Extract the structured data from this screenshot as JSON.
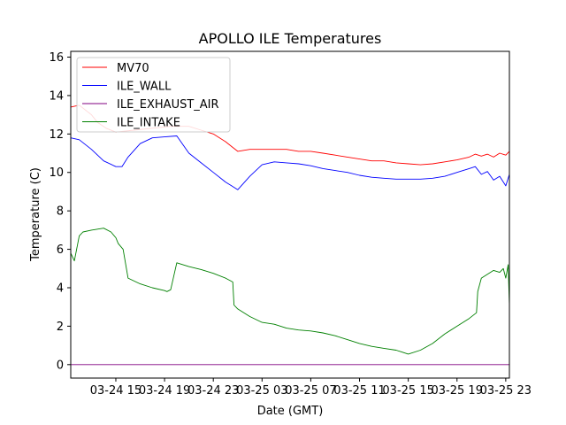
{
  "chart_data": {
    "type": "line",
    "title": "APOLLO ILE Temperatures",
    "xlabel": "Date (GMT)",
    "ylabel": "Temperature (C)",
    "x_unit": "hours since 03-24 00:00 GMT",
    "xlim": [
      11.3,
      47.3
    ],
    "ylim": [
      -0.7,
      16.3
    ],
    "x_ticks": [
      {
        "value": 15,
        "label": "03-24 15"
      },
      {
        "value": 19,
        "label": "03-24 19"
      },
      {
        "value": 23,
        "label": "03-24 23"
      },
      {
        "value": 27,
        "label": "03-25 03"
      },
      {
        "value": 31,
        "label": "03-25 07"
      },
      {
        "value": 35,
        "label": "03-25 11"
      },
      {
        "value": 39,
        "label": "03-25 15"
      },
      {
        "value": 43,
        "label": "03-25 19"
      },
      {
        "value": 47,
        "label": "03-25 23"
      }
    ],
    "y_ticks": [
      {
        "value": 0,
        "label": "0"
      },
      {
        "value": 2,
        "label": "2"
      },
      {
        "value": 4,
        "label": "4"
      },
      {
        "value": 6,
        "label": "6"
      },
      {
        "value": 8,
        "label": "8"
      },
      {
        "value": 10,
        "label": "10"
      },
      {
        "value": 12,
        "label": "12"
      },
      {
        "value": 14,
        "label": "14"
      },
      {
        "value": 16,
        "label": "16"
      }
    ],
    "legend_position": "top-left",
    "series": [
      {
        "name": "MV70",
        "color": "#ff0000",
        "x": [
          11.3,
          12.0,
          13.0,
          13.5,
          14.2,
          15.0,
          16.5,
          18.0,
          19.5,
          21.0,
          22.0,
          23.0,
          24.0,
          24.6,
          25.0,
          26.0,
          27.0,
          28.0,
          29.0,
          30.0,
          31.0,
          32.0,
          33.0,
          34.0,
          35.0,
          36.0,
          37.0,
          38.0,
          39.0,
          40.0,
          41.0,
          42.0,
          43.0,
          44.0,
          44.5,
          45.0,
          45.5,
          46.0,
          46.5,
          47.0,
          47.3
        ],
        "y": [
          13.4,
          13.5,
          13.0,
          12.6,
          12.3,
          12.1,
          12.2,
          12.3,
          12.4,
          12.4,
          12.2,
          12.0,
          11.6,
          11.3,
          11.1,
          11.2,
          11.2,
          11.2,
          11.2,
          11.1,
          11.1,
          11.0,
          10.9,
          10.8,
          10.7,
          10.6,
          10.6,
          10.5,
          10.45,
          10.4,
          10.45,
          10.55,
          10.65,
          10.8,
          10.95,
          10.85,
          10.95,
          10.8,
          11.0,
          10.9,
          11.1
        ]
      },
      {
        "name": "ILE_WALL",
        "color": "#0000ff",
        "x": [
          11.3,
          12.0,
          13.0,
          14.0,
          15.0,
          15.5,
          16.0,
          17.0,
          18.0,
          19.0,
          20.0,
          21.0,
          22.0,
          23.0,
          24.0,
          24.5,
          25.0,
          26.0,
          27.0,
          28.0,
          29.0,
          30.0,
          31.0,
          32.0,
          33.0,
          34.0,
          35.0,
          36.0,
          37.0,
          38.0,
          39.0,
          40.0,
          41.0,
          42.0,
          43.0,
          44.0,
          44.5,
          45.0,
          45.5,
          46.0,
          46.5,
          47.0,
          47.3
        ],
        "y": [
          11.8,
          11.7,
          11.2,
          10.6,
          10.3,
          10.3,
          10.8,
          11.5,
          11.8,
          11.85,
          11.9,
          11.0,
          10.5,
          10.0,
          9.5,
          9.3,
          9.1,
          9.8,
          10.4,
          10.55,
          10.5,
          10.45,
          10.35,
          10.2,
          10.1,
          10.0,
          9.85,
          9.75,
          9.7,
          9.65,
          9.65,
          9.65,
          9.7,
          9.8,
          10.0,
          10.2,
          10.3,
          9.9,
          10.05,
          9.6,
          9.8,
          9.3,
          9.9
        ]
      },
      {
        "name": "ILE_EXHAUST_AIR",
        "color": "#800080",
        "x": [
          11.3,
          47.3
        ],
        "y": [
          0,
          0
        ]
      },
      {
        "name": "ILE_INTAKE",
        "color": "#008000",
        "x": [
          11.3,
          11.6,
          12.0,
          12.3,
          13.0,
          14.0,
          14.6,
          15.0,
          15.2,
          15.6,
          16.0,
          17.0,
          18.0,
          19.0,
          19.2,
          19.5,
          20.0,
          21.0,
          22.0,
          23.0,
          24.0,
          24.6,
          24.7,
          25.0,
          26.0,
          27.0,
          28.0,
          29.0,
          30.0,
          31.0,
          32.0,
          33.0,
          34.0,
          35.0,
          36.0,
          37.0,
          38.0,
          38.5,
          39.0,
          40.0,
          41.0,
          42.0,
          43.0,
          44.0,
          44.6,
          44.7,
          45.0,
          45.5,
          46.0,
          46.5,
          46.8,
          47.0,
          47.2,
          47.3
        ],
        "y": [
          5.8,
          5.4,
          6.7,
          6.9,
          7.0,
          7.1,
          6.9,
          6.6,
          6.3,
          6.0,
          4.5,
          4.2,
          4.0,
          3.85,
          3.8,
          3.9,
          5.3,
          5.1,
          4.95,
          4.75,
          4.5,
          4.3,
          3.1,
          2.9,
          2.5,
          2.2,
          2.1,
          1.9,
          1.8,
          1.75,
          1.65,
          1.5,
          1.3,
          1.1,
          0.95,
          0.85,
          0.75,
          0.65,
          0.55,
          0.75,
          1.1,
          1.6,
          2.0,
          2.4,
          2.7,
          3.8,
          4.5,
          4.7,
          4.9,
          4.8,
          5.0,
          4.5,
          5.2,
          3.1
        ]
      }
    ]
  }
}
